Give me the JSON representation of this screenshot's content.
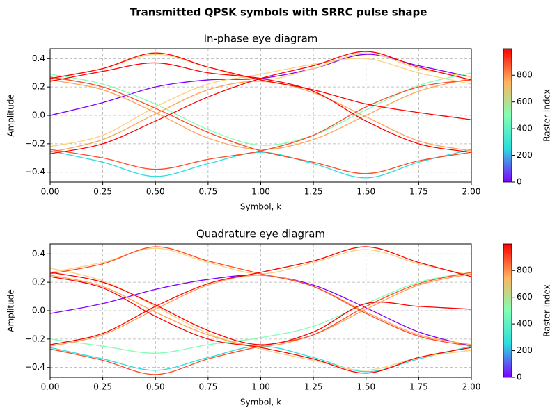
{
  "title": "Transmitted QPSK symbols with SRRC pulse shape",
  "chart_data": [
    {
      "type": "line",
      "title": "In-phase eye diagram",
      "xlabel": "Symbol, k",
      "ylabel": "Amplitude",
      "xlim": [
        0,
        2
      ],
      "ylim": [
        -0.47,
        0.47
      ],
      "grid": true,
      "xticks": [
        {
          "value": 0,
          "label": "0.00"
        },
        {
          "value": 0.25,
          "label": "0.25"
        },
        {
          "value": 0.5,
          "label": "0.50"
        },
        {
          "value": 0.75,
          "label": "0.75"
        },
        {
          "value": 1,
          "label": "1.00"
        },
        {
          "value": 1.25,
          "label": "1.25"
        },
        {
          "value": 1.5,
          "label": "1.50"
        },
        {
          "value": 1.75,
          "label": "1.75"
        },
        {
          "value": 2,
          "label": "2.00"
        }
      ],
      "yticks": [
        {
          "value": -0.4,
          "label": "−0.4"
        },
        {
          "value": -0.2,
          "label": "−0.2"
        },
        {
          "value": 0,
          "label": "0.0"
        },
        0.2,
        0.4
      ],
      "x": [
        0,
        0.25,
        0.5,
        0.75,
        1,
        1.25,
        1.5,
        1.75,
        2
      ],
      "series": [
        {
          "color": "#8000ff",
          "values": [
            0,
            0.09,
            0.2,
            0.25,
            0.26,
            0.33,
            0.43,
            0.35,
            0.27
          ]
        },
        {
          "color": "#2adddd",
          "values": [
            -0.25,
            -0.33,
            -0.43,
            -0.34,
            -0.26,
            -0.34,
            -0.44,
            -0.33,
            -0.24
          ]
        },
        {
          "color": "#80ffb4",
          "values": [
            0.29,
            0.22,
            0.08,
            -0.1,
            -0.21,
            -0.14,
            0.04,
            0.21,
            0.3
          ]
        },
        {
          "color": "#fdd17a",
          "values": [
            0.26,
            0.33,
            0.43,
            0.34,
            0.25,
            0.33,
            0.44,
            0.33,
            0.27
          ]
        },
        {
          "color": "#fdd17a",
          "values": [
            -0.22,
            -0.14,
            0.06,
            0.22,
            0.29,
            0.36,
            0.4,
            0.3,
            0.22
          ]
        },
        {
          "color": "#ffa256",
          "values": [
            0.25,
            0.18,
            0.02,
            -0.16,
            -0.24,
            -0.17,
            0,
            0.17,
            0.26
          ]
        },
        {
          "color": "#ffa256",
          "values": [
            -0.26,
            -0.17,
            0.01,
            0.18,
            0.24,
            0.16,
            -0.01,
            -0.18,
            -0.25
          ]
        },
        {
          "color": "#ff4a25",
          "values": [
            0.27,
            0.2,
            0.05,
            -0.12,
            -0.25,
            -0.33,
            -0.41,
            -0.32,
            -0.26
          ]
        },
        {
          "color": "#ff4a25",
          "values": [
            -0.24,
            -0.3,
            -0.38,
            -0.31,
            -0.25,
            -0.14,
            0.06,
            0.2,
            0.25
          ]
        },
        {
          "color": "#ff0000",
          "values": [
            0.24,
            0.31,
            0.37,
            0.3,
            0.26,
            0.17,
            -0.04,
            -0.2,
            -0.26
          ]
        },
        {
          "color": "#ff0000",
          "values": [
            -0.27,
            -0.2,
            -0.04,
            0.13,
            0.26,
            0.35,
            0.45,
            0.34,
            0.25
          ]
        },
        {
          "color": "#ff0000",
          "values": [
            0.26,
            0.33,
            0.44,
            0.34,
            0.25,
            0.18,
            0.08,
            0.02,
            -0.03
          ]
        }
      ],
      "colorbar": {
        "label": "Raster Index",
        "lim": [
          0,
          999
        ],
        "ticks": [
          0,
          200,
          400,
          600,
          800
        ],
        "colors": [
          "#8000ff",
          "#2adddd",
          "#80ffb4",
          "#ffb360",
          "#ff0000"
        ]
      }
    },
    {
      "type": "line",
      "title": "Quadrature eye diagram",
      "xlabel": "Symbol, k",
      "ylabel": "Amplitude",
      "xlim": [
        0,
        2
      ],
      "ylim": [
        -0.47,
        0.47
      ],
      "grid": true,
      "xticks": [
        {
          "value": 0,
          "label": "0.00"
        },
        {
          "value": 0.25,
          "label": "0.25"
        },
        {
          "value": 0.5,
          "label": "0.50"
        },
        {
          "value": 0.75,
          "label": "0.75"
        },
        {
          "value": 1,
          "label": "1.00"
        },
        {
          "value": 1.25,
          "label": "1.25"
        },
        {
          "value": 1.5,
          "label": "1.50"
        },
        {
          "value": 1.75,
          "label": "1.75"
        },
        {
          "value": 2,
          "label": "2.00"
        }
      ],
      "yticks": [
        {
          "value": -0.4,
          "label": "−0.4"
        },
        {
          "value": -0.2,
          "label": "−0.2"
        },
        {
          "value": 0,
          "label": "0.0"
        },
        0.2,
        0.4
      ],
      "x": [
        0,
        0.25,
        0.5,
        0.75,
        1,
        1.25,
        1.5,
        1.75,
        2
      ],
      "series": [
        {
          "color": "#8000ff",
          "values": [
            -0.02,
            0.05,
            0.15,
            0.22,
            0.25,
            0.18,
            0.02,
            -0.15,
            -0.25
          ]
        },
        {
          "color": "#2adddd",
          "values": [
            -0.26,
            -0.34,
            -0.42,
            -0.33,
            -0.25,
            -0.33,
            -0.43,
            -0.34,
            -0.25
          ]
        },
        {
          "color": "#80ffb4",
          "values": [
            -0.2,
            -0.25,
            -0.3,
            -0.24,
            -0.19,
            -0.11,
            0.05,
            0.2,
            0.27
          ]
        },
        {
          "color": "#fdd17a",
          "values": [
            0.27,
            0.34,
            0.44,
            0.34,
            0.26,
            0.34,
            0.43,
            0.33,
            0.25
          ]
        },
        {
          "color": "#fdd17a",
          "values": [
            0.3,
            0.21,
            0.03,
            -0.16,
            -0.27,
            -0.35,
            -0.42,
            -0.33,
            -0.28
          ]
        },
        {
          "color": "#ffa256",
          "values": [
            -0.25,
            -0.17,
            0.01,
            0.18,
            0.25,
            0.17,
            -0.01,
            -0.17,
            -0.24
          ]
        },
        {
          "color": "#ffa256",
          "values": [
            0.25,
            0.17,
            -0.01,
            -0.17,
            -0.25,
            -0.17,
            0.01,
            0.18,
            0.26
          ]
        },
        {
          "color": "#ff4a25",
          "values": [
            0.26,
            0.33,
            0.45,
            0.35,
            0.26,
            0.17,
            -0.02,
            -0.18,
            -0.25
          ]
        },
        {
          "color": "#ff4a25",
          "values": [
            -0.27,
            -0.35,
            -0.45,
            -0.34,
            -0.25,
            -0.17,
            0.03,
            0.19,
            0.27
          ]
        },
        {
          "color": "#ff0000",
          "values": [
            -0.24,
            -0.16,
            0.03,
            0.19,
            0.27,
            0.35,
            0.45,
            0.34,
            0.24
          ]
        },
        {
          "color": "#ff0000",
          "values": [
            0.24,
            0.16,
            -0.04,
            -0.2,
            -0.26,
            -0.34,
            -0.44,
            -0.33,
            -0.26
          ]
        },
        {
          "color": "#ff0000",
          "values": [
            0.27,
            0.2,
            0.04,
            -0.14,
            -0.24,
            -0.15,
            0.05,
            0.03,
            0.01
          ]
        }
      ],
      "colorbar": {
        "label": "Raster Index",
        "lim": [
          0,
          999
        ],
        "ticks": [
          0,
          200,
          400,
          600,
          800
        ],
        "colors": [
          "#8000ff",
          "#2adddd",
          "#80ffb4",
          "#ffb360",
          "#ff0000"
        ]
      }
    }
  ]
}
